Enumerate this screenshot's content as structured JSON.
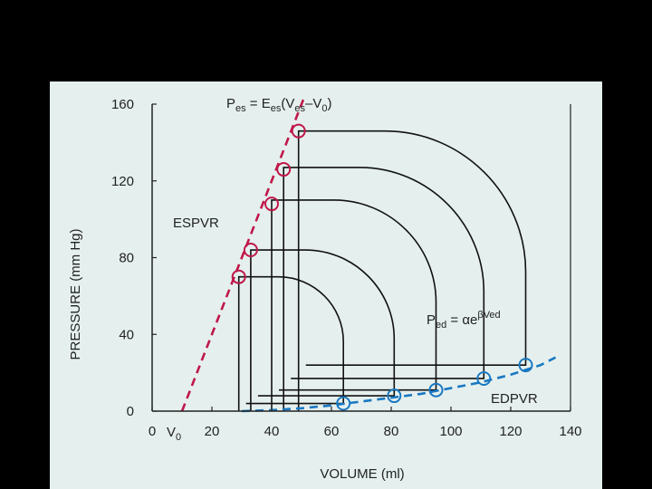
{
  "colors": {
    "background": "#000000",
    "panel": "#e5f0ee",
    "loop": "#111111",
    "espvr": "#c0174a",
    "edpvr": "#1a78c2"
  },
  "chart_data": {
    "type": "line",
    "xlabel": "VOLUME (ml)",
    "ylabel": "PRESSURE (mm Hg)",
    "xlim": [
      0,
      140
    ],
    "ylim": [
      0,
      160
    ],
    "xticks": [
      0,
      20,
      40,
      60,
      80,
      100,
      120,
      140
    ],
    "yticks": [
      0,
      40,
      80,
      120,
      160
    ],
    "grid": false,
    "v0_label": {
      "main": "V",
      "sub": "0",
      "x": 10
    },
    "series": [
      {
        "name": "ESPVR",
        "style": "dashed",
        "line": {
          "x": [
            10,
            51
          ],
          "y": [
            0,
            164
          ]
        },
        "points": [
          {
            "x": 29,
            "y": 70
          },
          {
            "x": 33,
            "y": 84
          },
          {
            "x": 40,
            "y": 108
          },
          {
            "x": 44,
            "y": 126
          },
          {
            "x": 49,
            "y": 146
          }
        ]
      },
      {
        "name": "EDPVR",
        "style": "dashed",
        "line": {
          "x": [
            30,
            40,
            50,
            60,
            70,
            80,
            90,
            100,
            110,
            120,
            130,
            135
          ],
          "y": [
            0,
            0.5,
            1.5,
            3,
            5,
            7,
            9,
            12,
            15,
            19,
            24,
            28
          ]
        },
        "points": [
          {
            "x": 64,
            "y": 4
          },
          {
            "x": 81,
            "y": 8
          },
          {
            "x": 95,
            "y": 11
          },
          {
            "x": 111,
            "y": 17
          },
          {
            "x": 125,
            "y": 24
          }
        ]
      }
    ],
    "loops": [
      {
        "v_es": 29,
        "v_ed": 64,
        "p_es": 70,
        "p_ed": 4,
        "p_top": 70
      },
      {
        "v_es": 33,
        "v_ed": 81,
        "p_es": 84,
        "p_ed": 8,
        "p_top": 84
      },
      {
        "v_es": 40,
        "v_ed": 95,
        "p_es": 108,
        "p_ed": 11,
        "p_top": 110
      },
      {
        "v_es": 44,
        "v_ed": 111,
        "p_es": 126,
        "p_ed": 17,
        "p_top": 127
      },
      {
        "v_es": 49,
        "v_ed": 125,
        "p_es": 146,
        "p_ed": 24,
        "p_top": 146
      }
    ],
    "annotations": {
      "espvr_label": "ESPVR",
      "edpvr_label": "EDPVR",
      "ees_eq": {
        "p": "P",
        "p_sub": "es",
        "mid": " = E",
        "e_sub": "es",
        "tail": "(V",
        "v_sub": "es",
        "end": "–V",
        "end_sub": "0",
        "close": ")"
      },
      "ped_eq": {
        "p": "P",
        "p_sub": "ed",
        "mid": " = αe",
        "sup": "βVed"
      }
    }
  }
}
